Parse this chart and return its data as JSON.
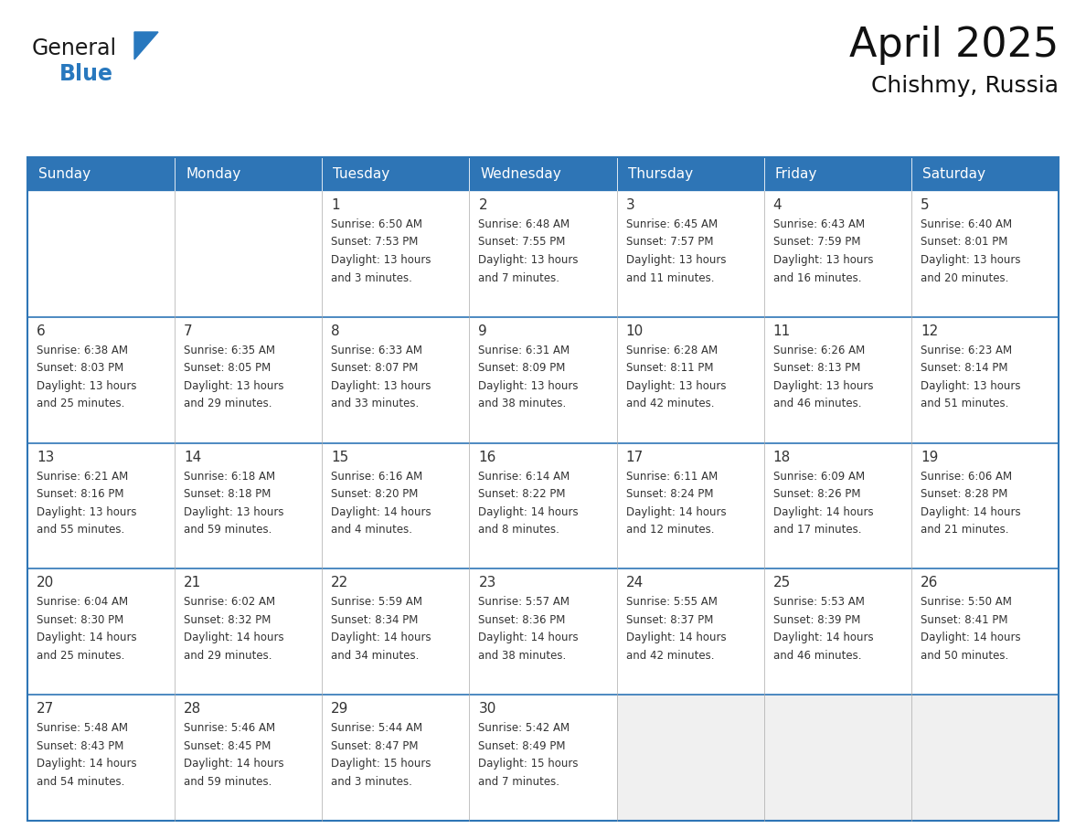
{
  "title": "April 2025",
  "subtitle": "Chishmy, Russia",
  "header_color": "#2e75b6",
  "header_text_color": "#ffffff",
  "cell_bg_color": "#ffffff",
  "empty_cell_bg_color": "#f0f0f0",
  "cell_text_color": "#333333",
  "border_color": "#2e75b6",
  "line_color": "#2e75b6",
  "day_headers": [
    "Sunday",
    "Monday",
    "Tuesday",
    "Wednesday",
    "Thursday",
    "Friday",
    "Saturday"
  ],
  "weeks": [
    [
      {
        "day": "",
        "info": ""
      },
      {
        "day": "",
        "info": ""
      },
      {
        "day": "1",
        "info": "Sunrise: 6:50 AM\nSunset: 7:53 PM\nDaylight: 13 hours\nand 3 minutes."
      },
      {
        "day": "2",
        "info": "Sunrise: 6:48 AM\nSunset: 7:55 PM\nDaylight: 13 hours\nand 7 minutes."
      },
      {
        "day": "3",
        "info": "Sunrise: 6:45 AM\nSunset: 7:57 PM\nDaylight: 13 hours\nand 11 minutes."
      },
      {
        "day": "4",
        "info": "Sunrise: 6:43 AM\nSunset: 7:59 PM\nDaylight: 13 hours\nand 16 minutes."
      },
      {
        "day": "5",
        "info": "Sunrise: 6:40 AM\nSunset: 8:01 PM\nDaylight: 13 hours\nand 20 minutes."
      }
    ],
    [
      {
        "day": "6",
        "info": "Sunrise: 6:38 AM\nSunset: 8:03 PM\nDaylight: 13 hours\nand 25 minutes."
      },
      {
        "day": "7",
        "info": "Sunrise: 6:35 AM\nSunset: 8:05 PM\nDaylight: 13 hours\nand 29 minutes."
      },
      {
        "day": "8",
        "info": "Sunrise: 6:33 AM\nSunset: 8:07 PM\nDaylight: 13 hours\nand 33 minutes."
      },
      {
        "day": "9",
        "info": "Sunrise: 6:31 AM\nSunset: 8:09 PM\nDaylight: 13 hours\nand 38 minutes."
      },
      {
        "day": "10",
        "info": "Sunrise: 6:28 AM\nSunset: 8:11 PM\nDaylight: 13 hours\nand 42 minutes."
      },
      {
        "day": "11",
        "info": "Sunrise: 6:26 AM\nSunset: 8:13 PM\nDaylight: 13 hours\nand 46 minutes."
      },
      {
        "day": "12",
        "info": "Sunrise: 6:23 AM\nSunset: 8:14 PM\nDaylight: 13 hours\nand 51 minutes."
      }
    ],
    [
      {
        "day": "13",
        "info": "Sunrise: 6:21 AM\nSunset: 8:16 PM\nDaylight: 13 hours\nand 55 minutes."
      },
      {
        "day": "14",
        "info": "Sunrise: 6:18 AM\nSunset: 8:18 PM\nDaylight: 13 hours\nand 59 minutes."
      },
      {
        "day": "15",
        "info": "Sunrise: 6:16 AM\nSunset: 8:20 PM\nDaylight: 14 hours\nand 4 minutes."
      },
      {
        "day": "16",
        "info": "Sunrise: 6:14 AM\nSunset: 8:22 PM\nDaylight: 14 hours\nand 8 minutes."
      },
      {
        "day": "17",
        "info": "Sunrise: 6:11 AM\nSunset: 8:24 PM\nDaylight: 14 hours\nand 12 minutes."
      },
      {
        "day": "18",
        "info": "Sunrise: 6:09 AM\nSunset: 8:26 PM\nDaylight: 14 hours\nand 17 minutes."
      },
      {
        "day": "19",
        "info": "Sunrise: 6:06 AM\nSunset: 8:28 PM\nDaylight: 14 hours\nand 21 minutes."
      }
    ],
    [
      {
        "day": "20",
        "info": "Sunrise: 6:04 AM\nSunset: 8:30 PM\nDaylight: 14 hours\nand 25 minutes."
      },
      {
        "day": "21",
        "info": "Sunrise: 6:02 AM\nSunset: 8:32 PM\nDaylight: 14 hours\nand 29 minutes."
      },
      {
        "day": "22",
        "info": "Sunrise: 5:59 AM\nSunset: 8:34 PM\nDaylight: 14 hours\nand 34 minutes."
      },
      {
        "day": "23",
        "info": "Sunrise: 5:57 AM\nSunset: 8:36 PM\nDaylight: 14 hours\nand 38 minutes."
      },
      {
        "day": "24",
        "info": "Sunrise: 5:55 AM\nSunset: 8:37 PM\nDaylight: 14 hours\nand 42 minutes."
      },
      {
        "day": "25",
        "info": "Sunrise: 5:53 AM\nSunset: 8:39 PM\nDaylight: 14 hours\nand 46 minutes."
      },
      {
        "day": "26",
        "info": "Sunrise: 5:50 AM\nSunset: 8:41 PM\nDaylight: 14 hours\nand 50 minutes."
      }
    ],
    [
      {
        "day": "27",
        "info": "Sunrise: 5:48 AM\nSunset: 8:43 PM\nDaylight: 14 hours\nand 54 minutes."
      },
      {
        "day": "28",
        "info": "Sunrise: 5:46 AM\nSunset: 8:45 PM\nDaylight: 14 hours\nand 59 minutes."
      },
      {
        "day": "29",
        "info": "Sunrise: 5:44 AM\nSunset: 8:47 PM\nDaylight: 15 hours\nand 3 minutes."
      },
      {
        "day": "30",
        "info": "Sunrise: 5:42 AM\nSunset: 8:49 PM\nDaylight: 15 hours\nand 7 minutes."
      },
      {
        "day": "",
        "info": ""
      },
      {
        "day": "",
        "info": ""
      },
      {
        "day": "",
        "info": ""
      }
    ]
  ],
  "logo_text_general": "General",
  "logo_text_blue": "Blue",
  "logo_color_general": "#1a1a1a",
  "logo_color_blue": "#2878be",
  "logo_triangle_color": "#2878be",
  "title_fontsize": 32,
  "subtitle_fontsize": 18,
  "header_fontsize": 11,
  "day_num_fontsize": 11,
  "info_fontsize": 8.5
}
